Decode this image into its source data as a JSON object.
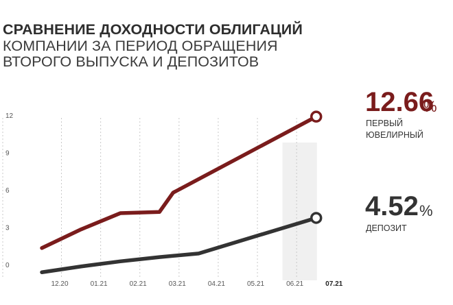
{
  "title": {
    "line1": "СРАВНЕНИЕ ДОХОДНОСТИ ОБЛИГАЦИЙ",
    "line2": "КОМПАНИИ ЗА ПЕРИОД ОБРАЩЕНИЯ",
    "line3": "ВТОРОГО ВЫПУСКА И ДЕПОЗИТОВ"
  },
  "colors": {
    "bond": "#7a1c1c",
    "deposit": "#333333",
    "highlight": "#f0f0f0",
    "grid": "#c8c8c8"
  },
  "chart_data": {
    "type": "line",
    "title": "СРАВНЕНИЕ ДОХОДНОСТИ ОБЛИГАЦИЙ КОМПАНИИ ЗА ПЕРИОД ОБРАЩЕНИЯ ВТОРОГО ВЫПУСКА И ДЕПОЗИТОВ",
    "categories": [
      "12.20",
      "01.21",
      "02.21",
      "03.21",
      "04.21",
      "05.21",
      "06.21",
      "07.21"
    ],
    "highlighted_category": "07.21",
    "y_ticks": [
      0,
      3,
      6,
      9,
      12
    ],
    "ylim": [
      0,
      13
    ],
    "grid": "vertical dashed lines",
    "series": [
      {
        "name": "ПЕРВЫЙ ЮВЕЛИРНЫЙ",
        "label_lines": [
          "ПЕРВЫЙ",
          "ЮВЕЛИРНЫЙ"
        ],
        "x": [
          0,
          1,
          2,
          3,
          3.35,
          7
        ],
        "values": [
          2.1,
          3.6,
          4.9,
          5.0,
          6.55,
          12.66
        ],
        "end_value": "12.66",
        "unit": "%"
      },
      {
        "name": "ДЕПОЗИТ",
        "label_lines": [
          "ДЕПОЗИТ"
        ],
        "x": [
          0,
          1,
          2,
          3,
          4,
          7
        ],
        "values": [
          0.15,
          0.62,
          1.03,
          1.37,
          1.66,
          4.52
        ],
        "end_value": "4.52",
        "unit": "%"
      }
    ]
  }
}
